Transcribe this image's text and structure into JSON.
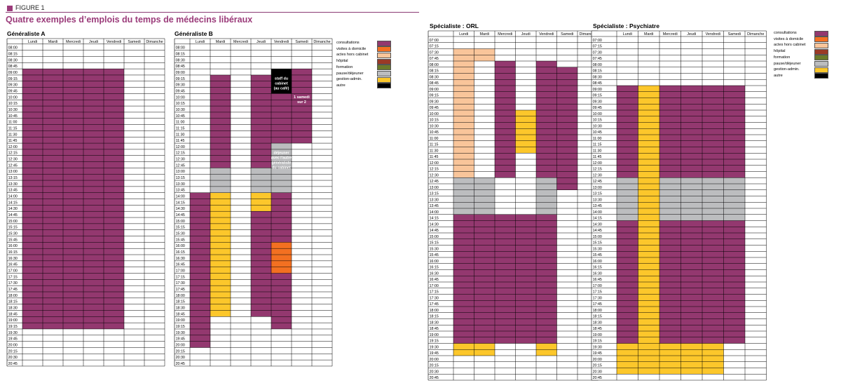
{
  "figure": {
    "label": "FIGURE 1",
    "title": "Quatre exemples d’emplois du temps de médecins libéraux"
  },
  "days": [
    "Lundi",
    "Mardi",
    "Mercredi",
    "Jeudi",
    "Vendredi",
    "Samedi",
    "Dimanche"
  ],
  "activities": [
    {
      "key": "consultations",
      "label": "consultations",
      "color": "#93386f"
    },
    {
      "key": "visites",
      "label": "visites à domicile",
      "color": "#f37021"
    },
    {
      "key": "actes",
      "label": "actes hors cabinet",
      "color": "#f9c59a"
    },
    {
      "key": "hopital",
      "label": "hôpital",
      "color": "#9b3a26"
    },
    {
      "key": "formation",
      "label": "formation",
      "color": "#6b7a2a"
    },
    {
      "key": "pause",
      "label": "pause/déjeuner",
      "color": "#bcbdbf"
    },
    {
      "key": "gestion",
      "label": "gestion-admin.",
      "color": "#fcc72b"
    },
    {
      "key": "autre",
      "label": "autre",
      "color": "#000000"
    }
  ],
  "chart_data": [
    {
      "type": "table",
      "title": "Généraliste A",
      "time_start": "08:00",
      "time_end": "20:45",
      "slots": [
        "08:00",
        "08:15",
        "08:30",
        "08:45",
        "09:00",
        "09:15",
        "09:30",
        "09:45",
        "10:00",
        "10:15",
        "10:30",
        "10:45",
        "11:00",
        "11:15",
        "11:30",
        "11:45",
        "12:00",
        "12:15",
        "12:30",
        "12:45",
        "13:00",
        "13:15",
        "13:30",
        "13:45",
        "14:00",
        "14:15",
        "14:30",
        "14:45",
        "15:00",
        "15:15",
        "15:30",
        "15:45",
        "16:00",
        "16:15",
        "16:30",
        "16:45",
        "17:00",
        "17:15",
        "17:30",
        "17:45",
        "18:00",
        "18:15",
        "18:30",
        "18:45",
        "19:00",
        "19:15",
        "19:30",
        "19:45",
        "20:00",
        "20:15",
        "20:30",
        "20:45"
      ],
      "blocks": [
        {
          "day": 0,
          "start": "09:00",
          "end": "19:30",
          "activity": "consultations"
        },
        {
          "day": 1,
          "start": "09:00",
          "end": "19:30",
          "activity": "consultations"
        },
        {
          "day": 2,
          "start": "09:00",
          "end": "19:30",
          "activity": "consultations"
        },
        {
          "day": 3,
          "start": "09:00",
          "end": "19:30",
          "activity": "consultations"
        },
        {
          "day": 4,
          "start": "09:00",
          "end": "19:30",
          "activity": "consultations"
        }
      ],
      "annotations": []
    },
    {
      "type": "table",
      "title": "Généraliste B",
      "time_start": "08:00",
      "time_end": "20:45",
      "slots": [
        "08:00",
        "08:15",
        "08:30",
        "08:45",
        "09:00",
        "09:15",
        "09:30",
        "09:45",
        "10:00",
        "10:15",
        "10:30",
        "10:45",
        "11:00",
        "11:15",
        "11:30",
        "11:45",
        "12:00",
        "12:15",
        "12:30",
        "12:45",
        "13:00",
        "13:15",
        "13:30",
        "13:45",
        "14:00",
        "14:15",
        "14:30",
        "14:45",
        "15:00",
        "15:15",
        "15:30",
        "15:45",
        "16:00",
        "16:15",
        "16:30",
        "16:45",
        "17:00",
        "17:15",
        "17:30",
        "17:45",
        "18:00",
        "18:15",
        "18:30",
        "18:45",
        "19:00",
        "19:15",
        "19:30",
        "19:45",
        "20:00",
        "20:15",
        "20:30",
        "20:45"
      ],
      "blocks": [
        {
          "day": 0,
          "start": "14:00",
          "end": "20:15",
          "activity": "consultations"
        },
        {
          "day": 1,
          "start": "09:15",
          "end": "13:00",
          "activity": "consultations"
        },
        {
          "day": 1,
          "start": "13:00",
          "end": "14:00",
          "activity": "pause"
        },
        {
          "day": 1,
          "start": "14:00",
          "end": "19:00",
          "activity": "gestion"
        },
        {
          "day": 3,
          "start": "09:15",
          "end": "13:00",
          "activity": "consultations"
        },
        {
          "day": 3,
          "start": "13:00",
          "end": "14:00",
          "activity": "pause"
        },
        {
          "day": 3,
          "start": "14:00",
          "end": "14:45",
          "activity": "gestion"
        },
        {
          "day": 3,
          "start": "14:45",
          "end": "19:00",
          "activity": "consultations"
        },
        {
          "day": 4,
          "start": "09:00",
          "end": "10:00",
          "activity": "autre"
        },
        {
          "day": 4,
          "start": "10:00",
          "end": "12:00",
          "activity": "consultations"
        },
        {
          "day": 4,
          "start": "12:00",
          "end": "14:00",
          "activity": "pause"
        },
        {
          "day": 4,
          "start": "14:00",
          "end": "16:00",
          "activity": "consultations"
        },
        {
          "day": 4,
          "start": "16:00",
          "end": "17:15",
          "activity": "visites"
        },
        {
          "day": 4,
          "start": "17:15",
          "end": "19:30",
          "activity": "consultations"
        },
        {
          "day": 5,
          "start": "09:00",
          "end": "12:00",
          "activity": "consultations"
        }
      ],
      "annotations": [
        {
          "day": 4,
          "time": "09:15",
          "lines": [
            "staff du",
            "cabinet",
            "(au café)"
          ],
          "color": "#ffffff",
          "day_span": 1
        },
        {
          "day": 5,
          "time": "10:00",
          "lines": [
            "1 samedi",
            "sur 2"
          ],
          "color": "#ffffff",
          "day_span": 1
        },
        {
          "day": 4,
          "time": "12:15",
          "lines": [
            "déjeuner",
            "avec l’autre",
            "généraliste",
            "du cabinet"
          ],
          "color": "#ffffff",
          "day_span": 1
        }
      ]
    },
    {
      "type": "table",
      "title": "Spécialiste : ORL",
      "time_start": "07:00",
      "time_end": "20:45",
      "slots": [
        "07:00",
        "07:15",
        "07:30",
        "07:45",
        "08:00",
        "08:15",
        "08:30",
        "08:45",
        "09:00",
        "09:15",
        "09:30",
        "09:45",
        "10:00",
        "10:15",
        "10:30",
        "10:45",
        "11:00",
        "11:15",
        "11:30",
        "11:45",
        "12:00",
        "12:15",
        "12:30",
        "12:45",
        "13:00",
        "13:15",
        "13:30",
        "13:45",
        "14:00",
        "14:15",
        "14:30",
        "14:45",
        "15:00",
        "15:15",
        "15:30",
        "15:45",
        "16:00",
        "16:15",
        "16:30",
        "16:45",
        "17:00",
        "17:15",
        "17:30",
        "17:45",
        "18:00",
        "18:15",
        "18:30",
        "18:45",
        "19:00",
        "19:15",
        "19:30",
        "19:45",
        "20:00",
        "20:15",
        "20:30",
        "20:45"
      ],
      "blocks": [
        {
          "day": 0,
          "start": "07:30",
          "end": "12:45",
          "activity": "actes"
        },
        {
          "day": 1,
          "start": "07:30",
          "end": "08:00",
          "activity": "actes"
        },
        {
          "day": 2,
          "start": "08:00",
          "end": "12:45",
          "activity": "consultations"
        },
        {
          "day": 3,
          "start": "10:00",
          "end": "11:45",
          "activity": "gestion"
        },
        {
          "day": 4,
          "start": "08:00",
          "end": "12:45",
          "activity": "consultations"
        },
        {
          "day": 5,
          "start": "08:15",
          "end": "13:15",
          "activity": "consultations"
        },
        {
          "day": 0,
          "start": "12:45",
          "end": "14:15",
          "activity": "pause"
        },
        {
          "day": 1,
          "start": "12:45",
          "end": "14:15",
          "activity": "pause"
        },
        {
          "day": 4,
          "start": "12:45",
          "end": "14:15",
          "activity": "pause"
        },
        {
          "day": 0,
          "start": "14:15",
          "end": "19:30",
          "activity": "consultations"
        },
        {
          "day": 1,
          "start": "14:15",
          "end": "19:30",
          "activity": "consultations"
        },
        {
          "day": 2,
          "start": "14:15",
          "end": "19:30",
          "activity": "consultations"
        },
        {
          "day": 3,
          "start": "14:15",
          "end": "19:30",
          "activity": "consultations"
        },
        {
          "day": 4,
          "start": "14:15",
          "end": "19:30",
          "activity": "consultations"
        },
        {
          "day": 0,
          "start": "19:30",
          "end": "20:00",
          "activity": "gestion"
        },
        {
          "day": 1,
          "start": "19:30",
          "end": "20:00",
          "activity": "gestion"
        },
        {
          "day": 4,
          "start": "19:30",
          "end": "20:00",
          "activity": "gestion"
        }
      ],
      "annotations": []
    },
    {
      "type": "table",
      "title": "Spécialiste : Psychiatre",
      "time_start": "07:00",
      "time_end": "20:45",
      "slots": [
        "07:00",
        "07:15",
        "07:30",
        "07:45",
        "08:00",
        "08:15",
        "08:30",
        "08:45",
        "09:00",
        "09:15",
        "09:30",
        "09:45",
        "10:00",
        "10:15",
        "10:30",
        "10:45",
        "11:00",
        "11:15",
        "11:30",
        "11:45",
        "12:00",
        "12:15",
        "12:30",
        "12:45",
        "13:00",
        "13:15",
        "13:30",
        "13:45",
        "14:00",
        "14:15",
        "14:30",
        "14:45",
        "15:00",
        "15:15",
        "15:30",
        "15:45",
        "16:00",
        "16:15",
        "16:30",
        "16:45",
        "17:00",
        "17:15",
        "17:30",
        "17:45",
        "18:00",
        "18:15",
        "18:30",
        "18:45",
        "19:00",
        "19:15",
        "19:30",
        "19:45",
        "20:00",
        "20:15",
        "20:30",
        "20:45"
      ],
      "blocks": [
        {
          "day": 0,
          "start": "09:00",
          "end": "12:45",
          "activity": "consultations"
        },
        {
          "day": 0,
          "start": "12:45",
          "end": "14:30",
          "activity": "pause"
        },
        {
          "day": 0,
          "start": "14:30",
          "end": "19:30",
          "activity": "consultations"
        },
        {
          "day": 0,
          "start": "19:30",
          "end": "20:45",
          "activity": "gestion"
        },
        {
          "day": 1,
          "start": "09:00",
          "end": "20:45",
          "activity": "gestion"
        },
        {
          "day": 2,
          "start": "09:00",
          "end": "12:45",
          "activity": "consultations"
        },
        {
          "day": 2,
          "start": "12:45",
          "end": "14:30",
          "activity": "pause"
        },
        {
          "day": 2,
          "start": "14:30",
          "end": "19:30",
          "activity": "consultations"
        },
        {
          "day": 2,
          "start": "19:30",
          "end": "20:45",
          "activity": "gestion"
        },
        {
          "day": 3,
          "start": "09:00",
          "end": "12:45",
          "activity": "consultations"
        },
        {
          "day": 3,
          "start": "12:45",
          "end": "14:30",
          "activity": "pause"
        },
        {
          "day": 3,
          "start": "14:30",
          "end": "19:30",
          "activity": "consultations"
        },
        {
          "day": 3,
          "start": "19:30",
          "end": "20:45",
          "activity": "gestion"
        },
        {
          "day": 4,
          "start": "09:00",
          "end": "12:45",
          "activity": "consultations"
        },
        {
          "day": 4,
          "start": "12:45",
          "end": "14:30",
          "activity": "pause"
        },
        {
          "day": 4,
          "start": "14:30",
          "end": "19:30",
          "activity": "consultations"
        },
        {
          "day": 4,
          "start": "19:30",
          "end": "20:45",
          "activity": "gestion"
        },
        {
          "day": 5,
          "start": "09:00",
          "end": "12:45",
          "activity": "consultations"
        },
        {
          "day": 5,
          "start": "12:45",
          "end": "14:30",
          "activity": "pause"
        },
        {
          "day": 5,
          "start": "14:30",
          "end": "19:30",
          "activity": "consultations"
        }
      ],
      "annotations": []
    }
  ]
}
